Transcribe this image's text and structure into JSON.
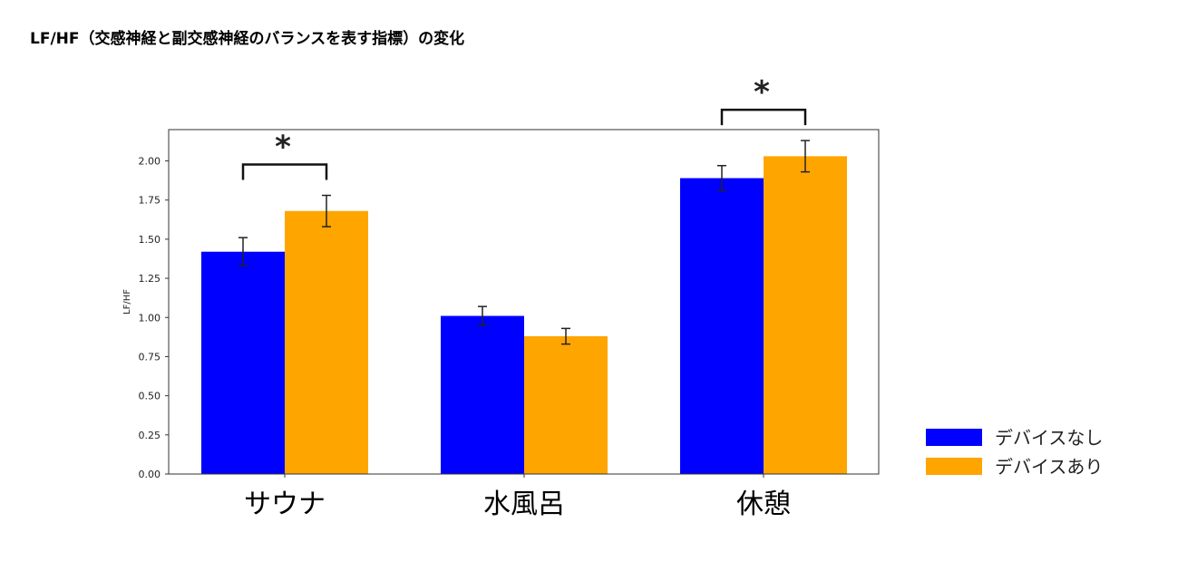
{
  "page": {
    "title": "LF/HF（交感神経と副交感神経のバランスを表す指標）の変化"
  },
  "chart_data": {
    "type": "bar",
    "title": "",
    "xlabel": "",
    "ylabel": "LF/HF",
    "categories": [
      "サウナ",
      "水風呂",
      "休憩"
    ],
    "series": [
      {
        "name": "デバイスなし",
        "color": "#0000ff",
        "values": [
          1.42,
          1.01,
          1.89
        ],
        "errors": [
          0.09,
          0.06,
          0.08
        ]
      },
      {
        "name": "デバイスあり",
        "color": "#ffa500",
        "values": [
          1.68,
          0.88,
          2.03
        ],
        "errors": [
          0.1,
          0.05,
          0.1
        ]
      }
    ],
    "ylim": [
      0,
      2.2
    ],
    "yticks": [
      "0.00",
      "0.25",
      "0.50",
      "0.75",
      "1.00",
      "1.25",
      "1.50",
      "1.75",
      "2.00"
    ],
    "significance": [
      {
        "category_index": 0,
        "label": "*"
      },
      {
        "category_index": 2,
        "label": "*"
      }
    ],
    "legend_placement": "bottom-right, outside plot",
    "grid": false
  }
}
